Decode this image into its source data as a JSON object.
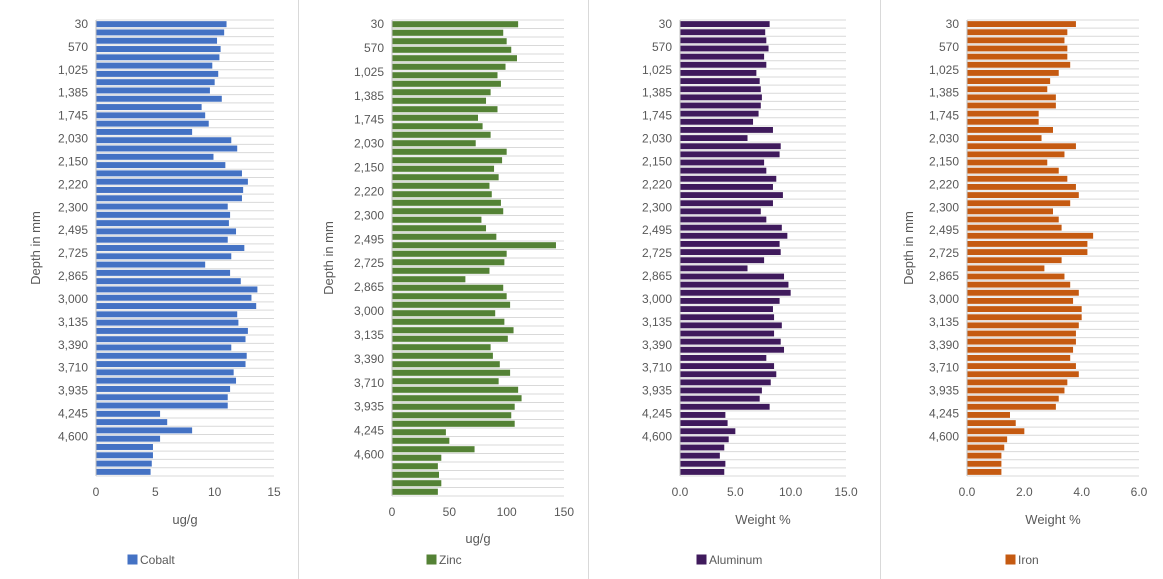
{
  "chart_data": [
    {
      "type": "bar",
      "orientation": "horizontal",
      "ylabel": "Depth in mm",
      "xlabel": "ug/g",
      "xlim": [
        0,
        15
      ],
      "xticks": [
        "0",
        "5",
        "10",
        "15"
      ],
      "category_labels": [
        "30",
        "570",
        "1,025",
        "1,385",
        "1,745",
        "2,030",
        "2,150",
        "2,220",
        "2,300",
        "2,495",
        "2,725",
        "2,865",
        "3,000",
        "3,135",
        "3,390",
        "3,710",
        "3,935",
        "4,245",
        "4,600"
      ],
      "series": [
        {
          "name": "Cobalt",
          "color": "#4472C4",
          "values": [
            11.0,
            10.8,
            10.2,
            10.5,
            10.4,
            9.8,
            10.3,
            10.0,
            9.6,
            10.6,
            8.9,
            9.2,
            9.5,
            8.1,
            11.4,
            11.9,
            9.9,
            10.9,
            12.3,
            12.8,
            12.4,
            12.3,
            11.1,
            11.3,
            11.2,
            11.8,
            11.1,
            12.5,
            11.4,
            9.2,
            11.3,
            12.2,
            13.6,
            13.1,
            13.5,
            11.9,
            12.0,
            12.8,
            12.6,
            11.4,
            12.7,
            12.6,
            11.6,
            11.8,
            11.3,
            11.1,
            11.1,
            5.4,
            6.0,
            8.1,
            5.4,
            4.8,
            4.8,
            4.7,
            4.6
          ]
        }
      ],
      "grid": true,
      "legend_position": "bottom"
    },
    {
      "type": "bar",
      "orientation": "horizontal",
      "ylabel": "Depth in mm",
      "xlabel": "ug/g",
      "xlim": [
        0,
        150
      ],
      "xticks": [
        "0",
        "50",
        "100",
        "150"
      ],
      "category_labels": [
        "30",
        "570",
        "1,025",
        "1,385",
        "1,745",
        "2,030",
        "2,150",
        "2,220",
        "2,300",
        "2,495",
        "2,725",
        "2,865",
        "3,000",
        "3,135",
        "3,390",
        "3,710",
        "3,935",
        "4,245",
        "4,600"
      ],
      "series": [
        {
          "name": "Zinc",
          "color": "#548235",
          "values": [
            110,
            97,
            100,
            104,
            109,
            99,
            92,
            95,
            86,
            82,
            92,
            75,
            79,
            86,
            73,
            100,
            96,
            89,
            93,
            85,
            87,
            95,
            97,
            78,
            82,
            91,
            143,
            100,
            98,
            85,
            64,
            97,
            100,
            103,
            90,
            98,
            106,
            101,
            86,
            88,
            94,
            103,
            93,
            110,
            113,
            107,
            104,
            107,
            47,
            50,
            72,
            43,
            40,
            41,
            43,
            40
          ]
        }
      ],
      "grid": true,
      "legend_position": "bottom"
    },
    {
      "type": "bar",
      "orientation": "horizontal",
      "ylabel": "",
      "xlabel": "Weight %",
      "xlim": [
        0,
        15
      ],
      "xticks": [
        "0.0",
        "5.0",
        "10.0",
        "15.0"
      ],
      "category_labels": [
        "30",
        "570",
        "1,025",
        "1,385",
        "1,745",
        "2,030",
        "2,150",
        "2,220",
        "2,300",
        "2,495",
        "2,725",
        "2,865",
        "3,000",
        "3,135",
        "3,390",
        "3,710",
        "3,935",
        "4,245",
        "4,600"
      ],
      "series": [
        {
          "name": "Aluminum",
          "color": "#3F1A5C",
          "values": [
            8.1,
            7.7,
            7.8,
            8.0,
            7.6,
            7.8,
            6.9,
            7.2,
            7.3,
            7.4,
            7.3,
            7.1,
            6.6,
            8.4,
            6.1,
            9.1,
            9.0,
            7.6,
            7.8,
            8.7,
            8.4,
            9.3,
            8.4,
            7.3,
            7.8,
            9.2,
            9.7,
            9.0,
            9.1,
            7.6,
            6.1,
            9.4,
            9.8,
            10.0,
            9.0,
            8.4,
            8.5,
            9.2,
            8.5,
            9.1,
            9.4,
            7.8,
            8.5,
            8.7,
            8.2,
            7.4,
            7.2,
            8.1,
            4.1,
            4.3,
            5.0,
            4.4,
            4.0,
            3.6,
            4.1,
            4.0
          ]
        }
      ],
      "grid": true,
      "legend_position": "bottom"
    },
    {
      "type": "bar",
      "orientation": "horizontal",
      "ylabel": "Depth in mm",
      "xlabel": "Weight %",
      "xlim": [
        0,
        6
      ],
      "xticks": [
        "0.0",
        "2.0",
        "4.0",
        "6.0"
      ],
      "category_labels": [
        "30",
        "570",
        "1,025",
        "1,385",
        "1,745",
        "2,030",
        "2,150",
        "2,220",
        "2,300",
        "2,495",
        "2,725",
        "2,865",
        "3,000",
        "3,135",
        "3,390",
        "3,710",
        "3,935",
        "4,245",
        "4,600"
      ],
      "series": [
        {
          "name": "Iron",
          "color": "#C55A11",
          "values": [
            3.8,
            3.5,
            3.4,
            3.5,
            3.5,
            3.6,
            3.2,
            2.9,
            2.8,
            3.1,
            3.1,
            2.5,
            2.5,
            3.0,
            2.6,
            3.8,
            3.4,
            2.8,
            3.2,
            3.5,
            3.8,
            3.9,
            3.6,
            3.0,
            3.2,
            3.3,
            4.4,
            4.2,
            4.2,
            3.3,
            2.7,
            3.4,
            3.6,
            3.9,
            3.7,
            4.0,
            4.0,
            3.9,
            3.8,
            3.8,
            3.7,
            3.6,
            3.8,
            3.9,
            3.5,
            3.4,
            3.2,
            3.1,
            1.5,
            1.7,
            2.0,
            1.4,
            1.3,
            1.2,
            1.2,
            1.2
          ]
        }
      ],
      "grid": true,
      "legend_position": "bottom"
    }
  ]
}
